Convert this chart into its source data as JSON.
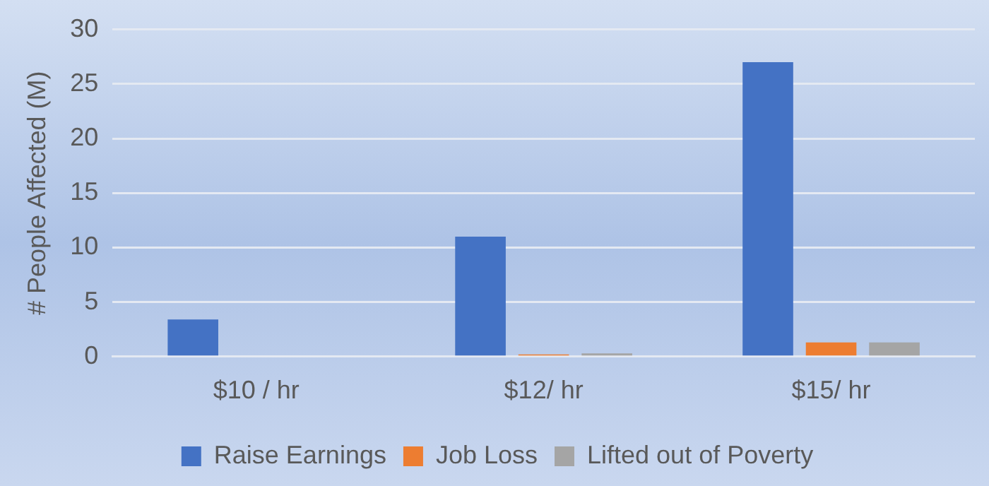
{
  "chart_data": {
    "type": "bar",
    "ylabel": "# People Affected (M)",
    "categories": [
      "$10 / hr",
      "$12/ hr",
      "$15/ hr"
    ],
    "series": [
      {
        "name": "Raise Earnings",
        "color": "#4472c4",
        "values": [
          3.4,
          11,
          27
        ]
      },
      {
        "name": "Job Loss",
        "color": "#ed7d31",
        "values": [
          0,
          0.2,
          1.3
        ]
      },
      {
        "name": "Lifted out of Poverty",
        "color": "#a5a5a5",
        "values": [
          0,
          0.3,
          1.3
        ]
      }
    ],
    "ylim": [
      0,
      30
    ],
    "yticks": [
      0,
      5,
      10,
      15,
      20,
      25,
      30
    ],
    "grid": "y",
    "legend": "bottom"
  }
}
